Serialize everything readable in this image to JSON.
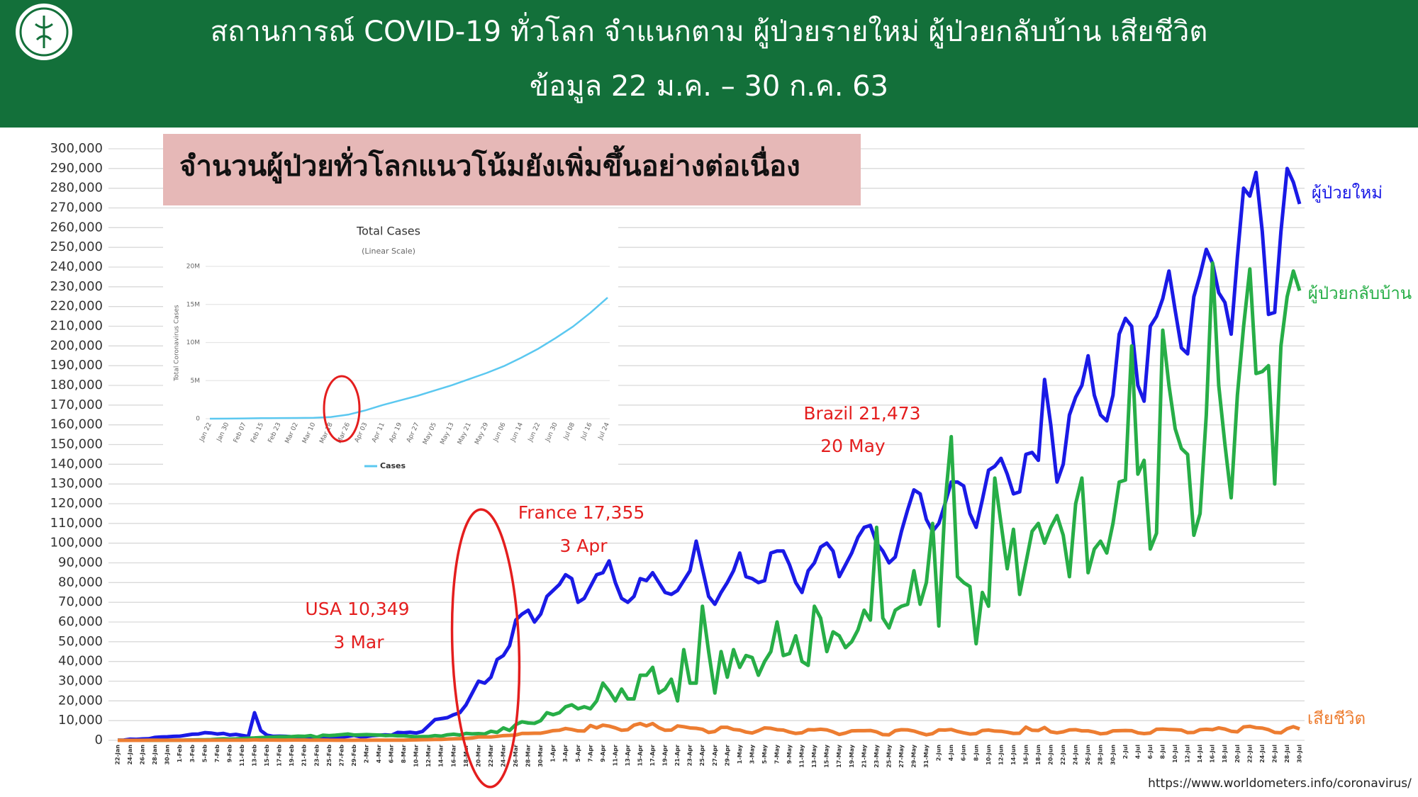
{
  "header": {
    "title": "สถานการณ์ COVID-19 ทั่วโลก จำแนกตาม ผู้ป่วยรายใหม่ ผู้ป่วยกลับบ้าน  เสียชีวิต",
    "subtitle": "ข้อมูล 22 ม.ค. – 30 ก.ค. 63"
  },
  "chart_data": [
    {
      "type": "line",
      "title": "จำนวนผู้ป่วยทั่วโลกแนวโน้มยังเพิ่มขึ้นอย่างต่อเนื่อง",
      "annotations": [
        "USA 10,349",
        "3 Mar",
        "France 17,355",
        "3 Apr",
        "Brazil 21,473",
        "20 May"
      ],
      "categories": [
        "22-Jan",
        null,
        "24-Jan",
        null,
        "26-Jan",
        null,
        "28-Jan",
        null,
        "30-Jan",
        null,
        "1-Feb",
        null,
        "3-Feb",
        null,
        "5-Feb",
        null,
        "7-Feb",
        null,
        "9-Feb",
        null,
        "11-Feb",
        null,
        "13-Feb",
        null,
        "15-Feb",
        null,
        "17-Feb",
        null,
        "19-Feb",
        null,
        "21-Feb",
        null,
        "23-Feb",
        null,
        "25-Feb",
        null,
        "27-Feb",
        null,
        "29-Feb",
        null,
        "2-Mar",
        null,
        "4-Mar",
        null,
        "6-Mar",
        null,
        "8-Mar",
        null,
        "10-Mar",
        null,
        "12-Mar",
        null,
        "14-Mar",
        null,
        "16-Mar",
        null,
        "18-Mar",
        null,
        "20-Mar",
        null,
        "22-Mar",
        null,
        "24-Mar",
        null,
        "26-Mar",
        null,
        "28-Mar",
        null,
        "30-Mar",
        null,
        "1-Apr",
        null,
        "3-Apr",
        null,
        "5-Apr",
        null,
        "7-Apr",
        null,
        "9-Apr",
        null,
        "11-Apr",
        null,
        "13-Apr",
        null,
        "15-Apr",
        null,
        "17-Apr",
        null,
        "19-Apr",
        null,
        "21-Apr",
        null,
        "23-Apr",
        null,
        "25-Apr",
        null,
        "27-Apr",
        null,
        "29-Apr",
        null,
        "1-May",
        null,
        "3-May",
        null,
        "5-May",
        null,
        "7-May",
        null,
        "9-May",
        null,
        "11-May",
        null,
        "13-May",
        null,
        "15-May",
        null,
        "17-May",
        null,
        "19-May",
        null,
        "21-May",
        null,
        "23-May",
        null,
        "25-May",
        null,
        "27-May",
        null,
        "29-May",
        null,
        "31-May",
        null,
        "2-Jun",
        null,
        "4-Jun",
        null,
        "6-Jun",
        null,
        "8-Jun",
        null,
        "10-Jun",
        null,
        "12-Jun",
        null,
        "14-Jun",
        null,
        "16-Jun",
        null,
        "18-Jun",
        null,
        "20-Jun",
        null,
        "22-Jun",
        null,
        "24-Jun",
        null,
        "26-Jun",
        null,
        "28-Jun",
        null,
        "30-Jun",
        null,
        "2-Jul",
        null,
        "4-Jul",
        null,
        "6-Jul",
        null,
        "8-Jul",
        null,
        "10-Jul",
        null,
        "12-Jul",
        null,
        "14-Jul",
        null,
        "16-Jul",
        null,
        "18-Jul",
        null,
        "20-Jul",
        null,
        "22-Jul",
        null,
        "24-Jul",
        null,
        "26-Jul",
        null,
        "28-Jul",
        null,
        "30-Jul"
      ],
      "series": [
        {
          "name": "ผู้ป่วยใหม่",
          "color": "#1a1ae6",
          "values": [
            100,
            150,
            600,
            500,
            700,
            800,
            1500,
            1700,
            1800,
            2000,
            2100,
            2600,
            3100,
            3200,
            3900,
            3700,
            3200,
            3500,
            2700,
            3000,
            2500,
            2000,
            14000,
            5000,
            2600,
            2000,
            2100,
            2000,
            1800,
            1000,
            1000,
            1000,
            1500,
            1200,
            1400,
            1300,
            1600,
            2000,
            2500,
            1800,
            1900,
            2400,
            2600,
            2800,
            2600,
            4000,
            3800,
            4100,
            3700,
            4500,
            7500,
            10500,
            11000,
            11500,
            13000,
            14000,
            18000,
            24000,
            30000,
            29000,
            32000,
            41000,
            43000,
            48000,
            61000,
            64000,
            66000,
            60000,
            64000,
            73000,
            76000,
            79000,
            84000,
            82000,
            70000,
            72000,
            78000,
            84000,
            85000,
            91000,
            80000,
            72000,
            70000,
            73000,
            82000,
            81000,
            85000,
            80000,
            75000,
            74000,
            76000,
            81000,
            86000,
            101000,
            87000,
            73000,
            69000,
            75000,
            80000,
            86000,
            95000,
            83000,
            82000,
            80000,
            81000,
            95000,
            96000,
            96000,
            89000,
            80000,
            75000,
            86000,
            90000,
            98000,
            100000,
            96000,
            83000,
            89000,
            95000,
            103000,
            108000,
            109000,
            100000,
            96000,
            90000,
            93000,
            106000,
            117000,
            127000,
            125000,
            112000,
            106000,
            110000,
            120000,
            131000,
            131000,
            129000,
            115000,
            108000,
            122000,
            137000,
            139000,
            143000,
            135000,
            125000,
            126000,
            145000,
            146000,
            142000,
            183000,
            160000,
            131000,
            140000,
            165000,
            174000,
            180000,
            195000,
            175000,
            165000,
            162000,
            175000,
            206000,
            214000,
            210000,
            180000,
            172000,
            210000,
            215000,
            224000,
            238000,
            218000,
            199000,
            196000,
            225000,
            236000,
            249000,
            242000,
            227000,
            222000,
            206000,
            245000,
            280000,
            276000,
            288000,
            258000,
            216000,
            217000,
            258000,
            290000,
            283000,
            272000
          ]
        },
        {
          "name": "ผู้ป่วยกลับบ้าน",
          "color": "#27ae47",
          "values": [
            30,
            0,
            10,
            10,
            20,
            20,
            60,
            10,
            40,
            40,
            60,
            150,
            170,
            250,
            280,
            350,
            600,
            750,
            650,
            730,
            900,
            1100,
            1200,
            1400,
            1500,
            1600,
            1800,
            1800,
            1900,
            2100,
            2000,
            2400,
            1500,
            2600,
            2400,
            2600,
            2900,
            3200,
            2700,
            2800,
            2900,
            2800,
            2700,
            2400,
            2500,
            2300,
            2300,
            2000,
            1800,
            1900,
            1900,
            2400,
            2100,
            2800,
            3100,
            2700,
            3500,
            3300,
            3400,
            3200,
            4600,
            4000,
            6300,
            5000,
            8000,
            9400,
            8800,
            8600,
            10000,
            14000,
            13000,
            14000,
            17000,
            18000,
            16000,
            17000,
            16000,
            20000,
            29000,
            25000,
            20000,
            26000,
            21000,
            21000,
            33000,
            33000,
            37000,
            24000,
            26000,
            31000,
            20000,
            46000,
            29000,
            29000,
            68000,
            45000,
            24000,
            45000,
            32000,
            46000,
            37000,
            43000,
            42000,
            33000,
            40000,
            45000,
            60000,
            43000,
            44000,
            53000,
            40000,
            38000,
            68000,
            62000,
            45000,
            55000,
            53000,
            47000,
            50000,
            56000,
            66000,
            61000,
            108000,
            62000,
            57000,
            66000,
            68000,
            69000,
            86000,
            69000,
            80000,
            110000,
            58000,
            120000,
            154000,
            83000,
            80000,
            78000,
            49000,
            75000,
            68000,
            133000,
            110000,
            87000,
            107000,
            74000,
            90000,
            106000,
            110000,
            100000,
            108000,
            114000,
            104000,
            83000,
            120000,
            133000,
            85000,
            97000,
            101000,
            95000,
            110000,
            131000,
            132000,
            200000,
            135000,
            142000,
            97000,
            105000,
            208000,
            180000,
            158000,
            148000,
            145000,
            104000,
            115000,
            165000,
            242000,
            180000,
            150000,
            123000,
            175000,
            210000,
            239000,
            186000,
            187000,
            190000,
            130000,
            200000,
            225000,
            238000,
            228000
          ]
        },
        {
          "name": "เสียชีวิต",
          "color": "#ed7d31",
          "values": [
            20,
            10,
            10,
            20,
            20,
            30,
            30,
            30,
            40,
            40,
            46,
            45,
            57,
            64,
            66,
            73,
            73,
            86,
            89,
            97,
            108,
            97,
            254,
            143,
            143,
            142,
            106,
            98,
            139,
            115,
            118,
            109,
            97,
            150,
            71,
            64,
            41,
            57,
            64,
            70,
            50,
            80,
            90,
            100,
            100,
            110,
            100,
            200,
            230,
            330,
            350,
            440,
            430,
            640,
            760,
            860,
            1000,
            1200,
            1700,
            1700,
            1700,
            2000,
            2400,
            2500,
            2700,
            3500,
            3500,
            3600,
            3600,
            4200,
            4900,
            5100,
            6000,
            5500,
            4800,
            4700,
            7500,
            6300,
            7700,
            7200,
            6300,
            5100,
            5400,
            7700,
            8500,
            7300,
            8500,
            6400,
            5100,
            5200,
            7300,
            6900,
            6300,
            6100,
            5600,
            4000,
            4500,
            6600,
            6600,
            5500,
            5200,
            4200,
            3700,
            4900,
            6300,
            6100,
            5400,
            5200,
            4200,
            3500,
            3800,
            5400,
            5300,
            5600,
            5300,
            4300,
            3000,
            3700,
            4800,
            4900,
            4900,
            5000,
            4300,
            2900,
            2800,
            4900,
            5400,
            5300,
            4700,
            3700,
            2800,
            3400,
            5300,
            5200,
            5500,
            4500,
            3800,
            3200,
            3400,
            5000,
            5200,
            4700,
            4600,
            4100,
            3500,
            3600,
            6700,
            5100,
            5000,
            6500,
            4300,
            3800,
            4300,
            5300,
            5400,
            4800,
            4800,
            4200,
            3300,
            3600,
            4800,
            4900,
            5000,
            4900,
            3800,
            3400,
            3700,
            5600,
            5700,
            5500,
            5400,
            5200,
            3900,
            4000,
            5400,
            5600,
            5400,
            6300,
            5700,
            4600,
            4300,
            6800,
            7100,
            6400,
            6200,
            5400,
            4000,
            3800,
            5900,
            6900,
            5800
          ]
        }
      ],
      "ylim": [
        0,
        300000
      ],
      "yticks": [
        0,
        {
          "value": 10000,
          "label": "10,000"
        },
        {
          "value": 20000,
          "label": "20,000"
        },
        {
          "value": 30000,
          "label": "30,000"
        },
        {
          "value": 40000,
          "label": "40,000"
        },
        {
          "value": 50000,
          "label": "50,000"
        },
        {
          "value": 60000,
          "label": "60,000"
        },
        {
          "value": 70000,
          "label": "70,000"
        },
        {
          "value": 80000,
          "label": "80,000"
        },
        {
          "value": 90000,
          "label": "90,000"
        },
        {
          "value": 100000,
          "label": "100,000"
        },
        {
          "value": 110000,
          "label": "110,000"
        },
        {
          "value": 120000,
          "label": "120,000"
        },
        {
          "value": 130000,
          "label": "130,000"
        },
        {
          "value": 140000,
          "label": "140,000"
        },
        {
          "value": 150000,
          "label": "150,000"
        },
        {
          "value": 160000,
          "label": "160,000"
        },
        {
          "value": 170000,
          "label": "170,000"
        },
        {
          "value": 180000,
          "label": "180,000"
        },
        {
          "value": 190000,
          "label": "190,000"
        },
        {
          "value": 200000,
          "label": "200,000"
        },
        {
          "value": 210000,
          "label": "210,000"
        },
        {
          "value": 220000,
          "label": "220,000"
        },
        {
          "value": 230000,
          "label": "230,000"
        },
        {
          "value": 240000,
          "label": "240,000"
        },
        {
          "value": 250000,
          "label": "250,000"
        },
        {
          "value": 260000,
          "label": "260,000"
        },
        {
          "value": 270000,
          "label": "270,000"
        },
        {
          "value": 280000,
          "label": "280,000"
        },
        {
          "value": 290000,
          "label": "290,000"
        },
        {
          "value": 300000,
          "label": "300,000"
        }
      ],
      "grid": true
    },
    {
      "type": "line",
      "title": "Total Cases",
      "subtitle": "(Linear Scale)",
      "y_label": "Total Coronavirus Cases",
      "categories": [
        "Jan 22",
        "Jan 30",
        "Feb 07",
        "Feb 15",
        "Feb 23",
        "Mar 02",
        "Mar 10",
        "Mar 18",
        "Mar 26",
        "Apr 03",
        "Apr 11",
        "Apr 19",
        "Apr 27",
        "May 05",
        "May 13",
        "May 21",
        "May 29",
        "Jun 06",
        "Jun 14",
        "Jun 22",
        "Jun 30",
        "Jul 08",
        "Jul 16",
        "Jul 24"
      ],
      "series": [
        {
          "name": "Cases",
          "color": "#5bc8f0",
          "values": [
            555,
            9800,
            34000,
            69000,
            79000,
            90000,
            119000,
            218000,
            531000,
            1100000,
            1800000,
            2400000,
            3000000,
            3700000,
            4400000,
            5200000,
            6000000,
            6900000,
            8000000,
            9200000,
            10600000,
            12100000,
            13900000,
            15900000
          ]
        }
      ],
      "ylim": [
        0,
        20000000
      ],
      "yticks": [
        0,
        {
          "value": 5000000,
          "label": "5M"
        },
        {
          "value": 10000000,
          "label": "10M"
        },
        {
          "value": 15000000,
          "label": "15M"
        },
        {
          "value": 20000000,
          "label": "20M"
        }
      ],
      "grid": true,
      "legend": "bottom"
    }
  ],
  "source": "https://www.worldometers.info/coronavirus/"
}
